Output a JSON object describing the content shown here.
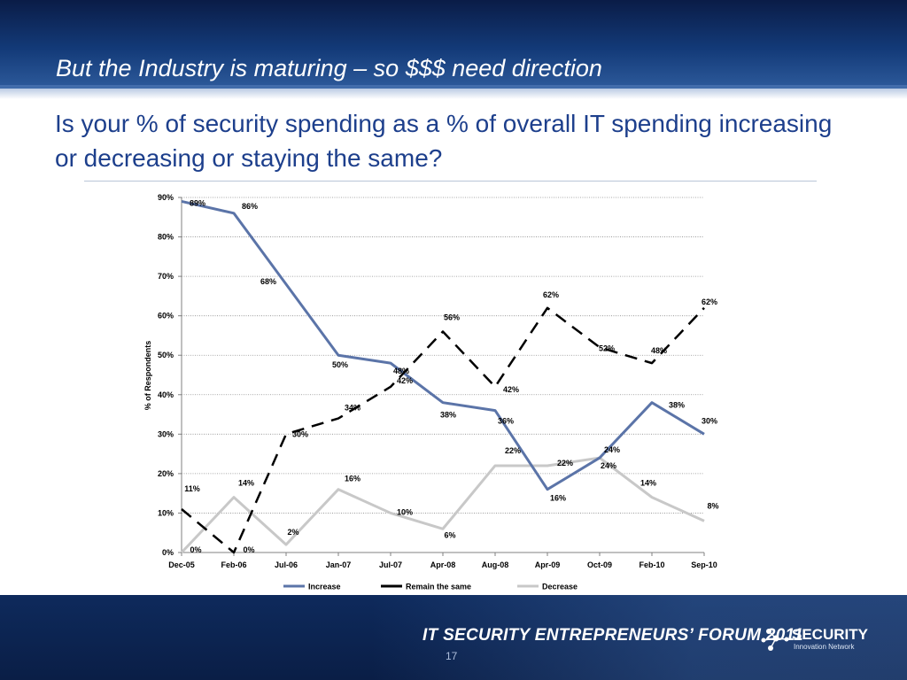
{
  "slide": {
    "title": "But the Industry is maturing – so $$$ need direction",
    "question": "Is your % of security spending as a % of overall IT spending increasing or decreasing or staying the same?",
    "footer": "IT SECURITY ENTREPRENEURS’ FORUM 2011",
    "logo_name": "SECURITY",
    "logo_sub": "Innovation Network",
    "page_number": "17"
  },
  "chart_data": {
    "type": "line",
    "title": "",
    "xlabel": "",
    "ylabel": "% of Respondents",
    "ylim": [
      0,
      90
    ],
    "yticks": [
      "0%",
      "10%",
      "20%",
      "30%",
      "40%",
      "50%",
      "60%",
      "70%",
      "80%",
      "90%"
    ],
    "grid": true,
    "legend": "bottom",
    "categories": [
      "Dec-05",
      "Feb-06",
      "Jul-06",
      "Jan-07",
      "Jul-07",
      "Apr-08",
      "Aug-08",
      "Apr-09",
      "Oct-09",
      "Feb-10",
      "Sep-10"
    ],
    "series": [
      {
        "name": "Increase",
        "values": [
          89,
          86,
          68,
          50,
          48,
          38,
          36,
          16,
          24,
          38,
          30
        ],
        "labels": [
          "89%",
          "86%",
          "68%",
          "50%",
          "48%",
          "38%",
          "36%",
          "16%",
          "24%",
          "38%",
          "30%"
        ],
        "color": "#5b74a8",
        "style": "solid"
      },
      {
        "name": "Remain the same",
        "values": [
          11,
          0,
          30,
          34,
          42,
          56,
          42,
          62,
          52,
          48,
          62
        ],
        "labels": [
          "11%",
          "0%",
          "30%",
          "34%",
          "42%",
          "56%",
          "42%",
          "62%",
          "52%",
          "48%",
          "62%"
        ],
        "color": "#000000",
        "style": "dashed"
      },
      {
        "name": "Decrease",
        "values": [
          0,
          14,
          2,
          16,
          10,
          6,
          22,
          22,
          24,
          14,
          8
        ],
        "labels": [
          "0%",
          "14%",
          "2%",
          "16%",
          "10%",
          "6%",
          "22%",
          "22%",
          "24%",
          "14%",
          "8%"
        ],
        "color": "#c8c8c8",
        "style": "solid"
      }
    ]
  }
}
